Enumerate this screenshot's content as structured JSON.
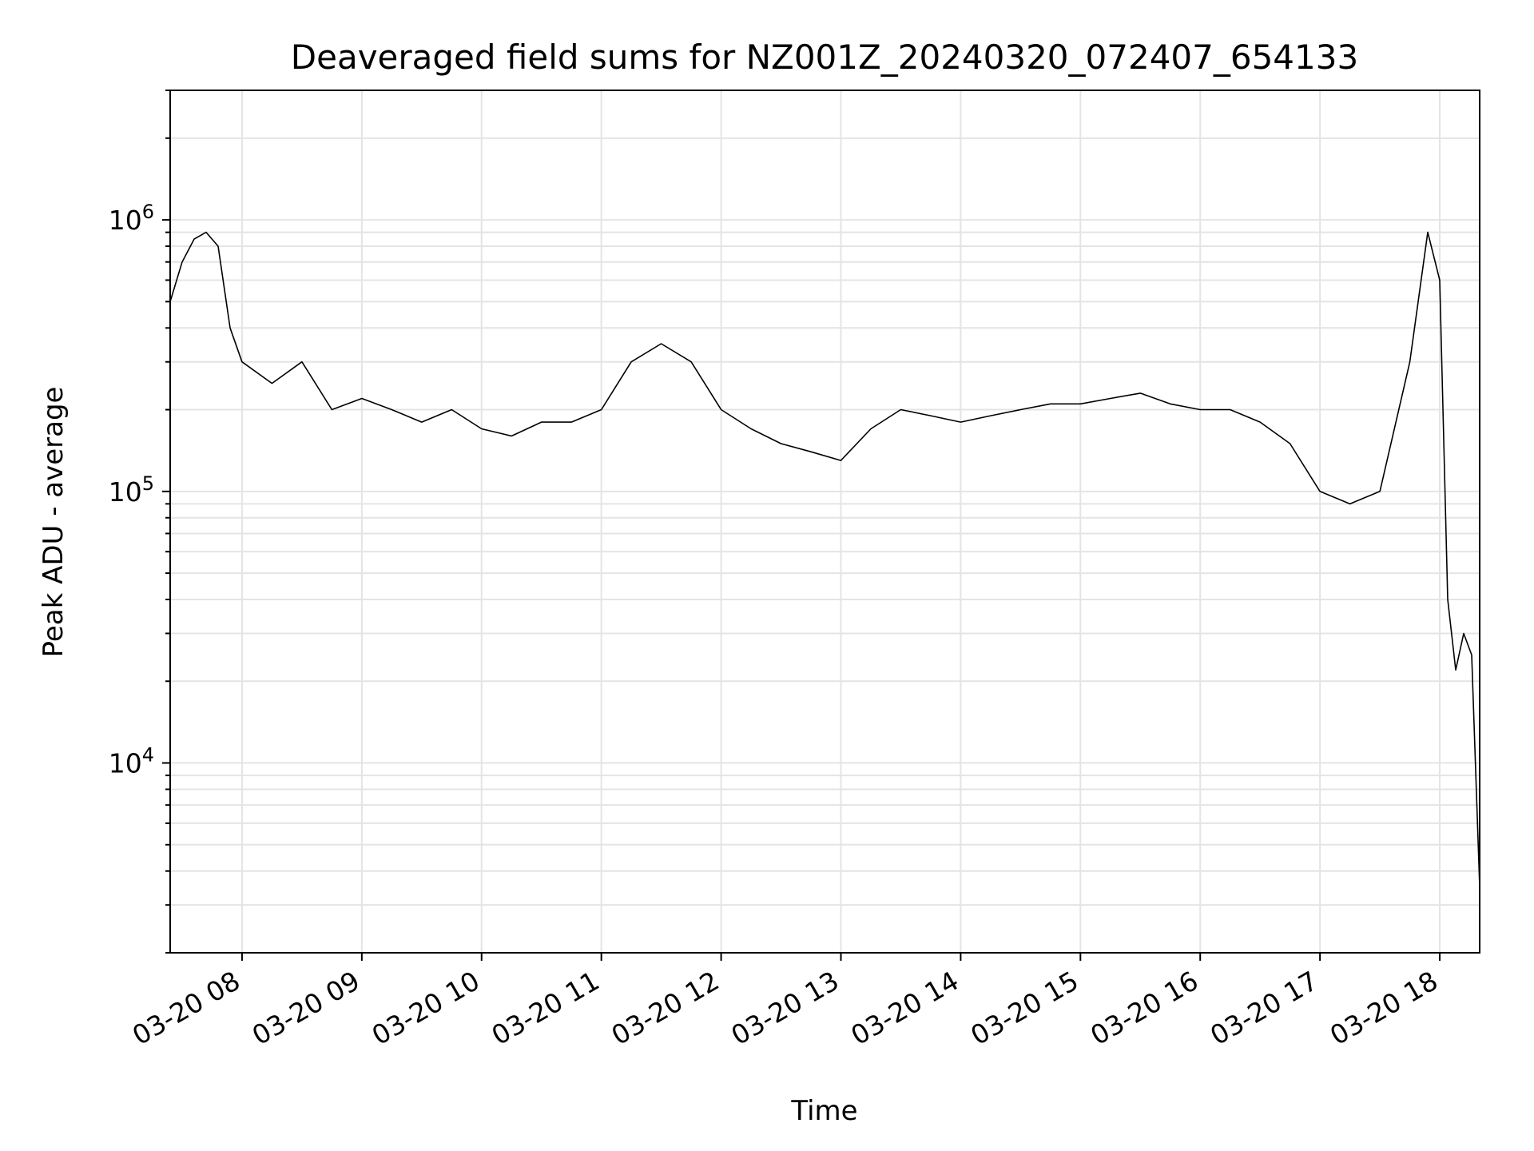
{
  "chart_data": {
    "type": "line",
    "title": "Deaveraged field sums for NZ001Z_20240320_072407_654133",
    "xlabel": "Time",
    "ylabel": "Peak ADU - average",
    "yscale": "log",
    "ylim": [
      2000,
      3000000
    ],
    "xlim": [
      "2024-03-20 07:24",
      "2024-03-20 18:20"
    ],
    "grid": true,
    "legend": "none",
    "line_color": "#000000",
    "x_ticks": [
      "03-20 08",
      "03-20 09",
      "03-20 10",
      "03-20 11",
      "03-20 12",
      "03-20 13",
      "03-20 14",
      "03-20 15",
      "03-20 16",
      "03-20 17",
      "03-20 18"
    ],
    "y_ticks": [
      {
        "value": 10000,
        "base": "10",
        "exp": "4"
      },
      {
        "value": 100000,
        "base": "10",
        "exp": "5"
      },
      {
        "value": 1000000,
        "base": "10",
        "exp": "6"
      }
    ],
    "series": [
      {
        "points": [
          [
            "2024-03-20 07:24",
            500000
          ],
          [
            "2024-03-20 07:30",
            700000
          ],
          [
            "2024-03-20 07:36",
            850000
          ],
          [
            "2024-03-20 07:42",
            900000
          ],
          [
            "2024-03-20 07:48",
            800000
          ],
          [
            "2024-03-20 07:54",
            400000
          ],
          [
            "2024-03-20 08:00",
            300000
          ],
          [
            "2024-03-20 08:15",
            250000
          ],
          [
            "2024-03-20 08:30",
            300000
          ],
          [
            "2024-03-20 08:45",
            200000
          ],
          [
            "2024-03-20 09:00",
            220000
          ],
          [
            "2024-03-20 09:15",
            200000
          ],
          [
            "2024-03-20 09:30",
            180000
          ],
          [
            "2024-03-20 09:45",
            200000
          ],
          [
            "2024-03-20 10:00",
            170000
          ],
          [
            "2024-03-20 10:15",
            160000
          ],
          [
            "2024-03-20 10:30",
            180000
          ],
          [
            "2024-03-20 10:45",
            180000
          ],
          [
            "2024-03-20 11:00",
            200000
          ],
          [
            "2024-03-20 11:15",
            300000
          ],
          [
            "2024-03-20 11:30",
            350000
          ],
          [
            "2024-03-20 11:45",
            300000
          ],
          [
            "2024-03-20 12:00",
            200000
          ],
          [
            "2024-03-20 12:15",
            170000
          ],
          [
            "2024-03-20 12:30",
            150000
          ],
          [
            "2024-03-20 12:45",
            140000
          ],
          [
            "2024-03-20 13:00",
            130000
          ],
          [
            "2024-03-20 13:15",
            170000
          ],
          [
            "2024-03-20 13:30",
            200000
          ],
          [
            "2024-03-20 13:45",
            190000
          ],
          [
            "2024-03-20 14:00",
            180000
          ],
          [
            "2024-03-20 14:15",
            190000
          ],
          [
            "2024-03-20 14:30",
            200000
          ],
          [
            "2024-03-20 14:45",
            210000
          ],
          [
            "2024-03-20 15:00",
            210000
          ],
          [
            "2024-03-20 15:15",
            220000
          ],
          [
            "2024-03-20 15:30",
            230000
          ],
          [
            "2024-03-20 15:45",
            210000
          ],
          [
            "2024-03-20 16:00",
            200000
          ],
          [
            "2024-03-20 16:15",
            200000
          ],
          [
            "2024-03-20 16:30",
            180000
          ],
          [
            "2024-03-20 16:45",
            150000
          ],
          [
            "2024-03-20 17:00",
            100000
          ],
          [
            "2024-03-20 17:15",
            90000
          ],
          [
            "2024-03-20 17:30",
            100000
          ],
          [
            "2024-03-20 17:45",
            300000
          ],
          [
            "2024-03-20 17:54",
            900000
          ],
          [
            "2024-03-20 18:00",
            600000
          ],
          [
            "2024-03-20 18:04",
            40000
          ],
          [
            "2024-03-20 18:08",
            22000
          ],
          [
            "2024-03-20 18:12",
            30000
          ],
          [
            "2024-03-20 18:16",
            25000
          ],
          [
            "2024-03-20 18:20",
            3500
          ]
        ]
      }
    ]
  }
}
